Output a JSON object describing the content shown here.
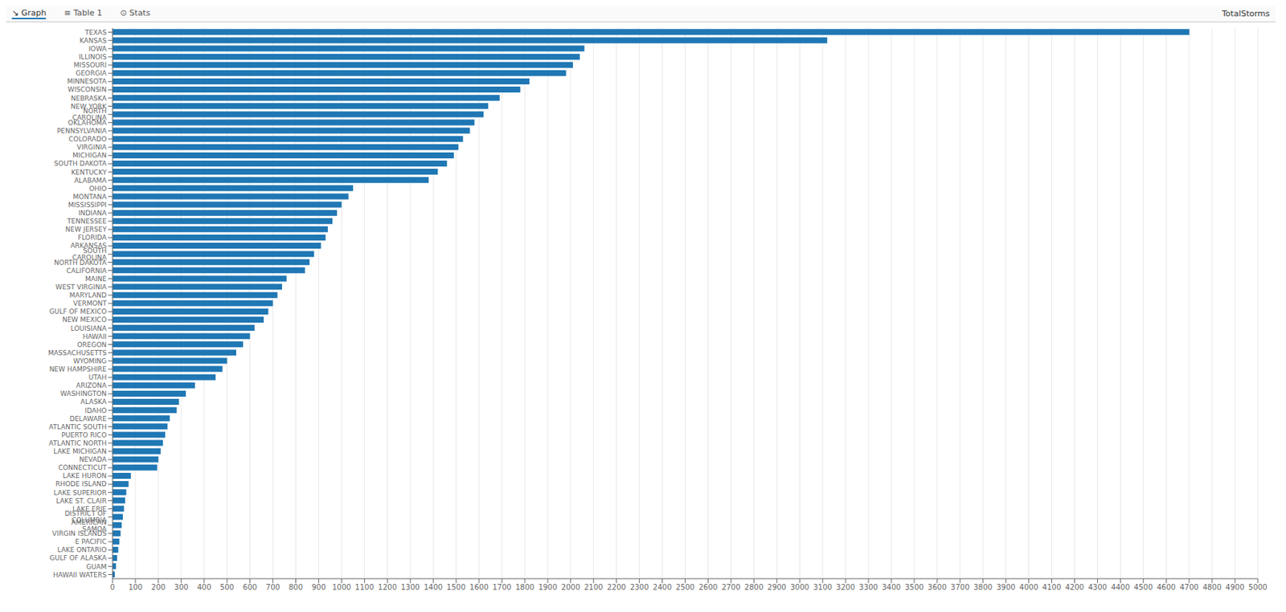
{
  "chart_data": {
    "type": "bar",
    "orientation": "horizontal",
    "annotations": [
      "↘ Graph",
      "≡ Table 1",
      "⊙ Stats",
      "TotalStorms"
    ],
    "categories": [
      "TEXAS",
      "KANSAS",
      "IOWA",
      "ILLINOIS",
      "MISSOURI",
      "GEORGIA",
      "MINNESOTA",
      "WISCONSIN",
      "NEBRASKA",
      "NEW YORK",
      "NORTH CAROLINA",
      "OKLAHOMA",
      "PENNSYLVANIA",
      "COLORADO",
      "VIRGINIA",
      "MICHIGAN",
      "SOUTH DAKOTA",
      "KENTUCKY",
      "ALABAMA",
      "OHIO",
      "MONTANA",
      "MISSISSIPPI",
      "INDIANA",
      "TENNESSEE",
      "NEW JERSEY",
      "FLORIDA",
      "ARKANSAS",
      "SOUTH CAROLINA",
      "NORTH DAKOTA",
      "CALIFORNIA",
      "MAINE",
      "WEST VIRGINIA",
      "MARYLAND",
      "VERMONT",
      "GULF OF MEXICO",
      "NEW MEXICO",
      "LOUISIANA",
      "HAWAII",
      "OREGON",
      "MASSACHUSETTS",
      "WYOMING",
      "NEW HAMPSHIRE",
      "UTAH",
      "ARIZONA",
      "WASHINGTON",
      "ALASKA",
      "IDAHO",
      "DELAWARE",
      "ATLANTIC SOUTH",
      "PUERTO RICO",
      "ATLANTIC NORTH",
      "LAKE MICHIGAN",
      "NEVADA",
      "CONNECTICUT",
      "LAKE HURON",
      "RHODE ISLAND",
      "LAKE SUPERIOR",
      "LAKE ST. CLAIR",
      "LAKE ERIE",
      "DISTRICT OF COLUMBIA",
      "AMERICAN SAMOA",
      "VIRGIN ISLANDS",
      "E PACIFIC",
      "LAKE ONTARIO",
      "GULF OF ALASKA",
      "GUAM",
      "HAWAII WATERS"
    ],
    "values": [
      4701,
      3120,
      2060,
      2040,
      2010,
      1980,
      1820,
      1780,
      1690,
      1640,
      1620,
      1580,
      1560,
      1530,
      1510,
      1490,
      1460,
      1420,
      1380,
      1050,
      1030,
      1000,
      980,
      960,
      940,
      930,
      910,
      880,
      860,
      840,
      760,
      740,
      720,
      700,
      680,
      660,
      620,
      600,
      570,
      540,
      500,
      480,
      450,
      360,
      320,
      290,
      280,
      250,
      240,
      230,
      220,
      210,
      200,
      195,
      80,
      70,
      60,
      55,
      50,
      45,
      40,
      35,
      30,
      25,
      20,
      15,
      10
    ],
    "color": "#1F77B4",
    "xlim": [
      0,
      5000
    ],
    "xticks": [
      0,
      100,
      200,
      300,
      400,
      500,
      600,
      700,
      800,
      900,
      1000,
      1100,
      1200,
      1300,
      1400,
      1500,
      1600,
      1700,
      1800,
      1900,
      2000,
      2100,
      2200,
      2300,
      2400,
      2500,
      2600,
      2700,
      2800,
      2900,
      3000,
      3100,
      3200,
      3300,
      3400,
      3500,
      3600,
      3700,
      3800,
      3900,
      4000,
      4100,
      4200,
      4300,
      4400,
      4500,
      4600,
      4700,
      4800,
      4900,
      5000
    ],
    "grid": true
  }
}
